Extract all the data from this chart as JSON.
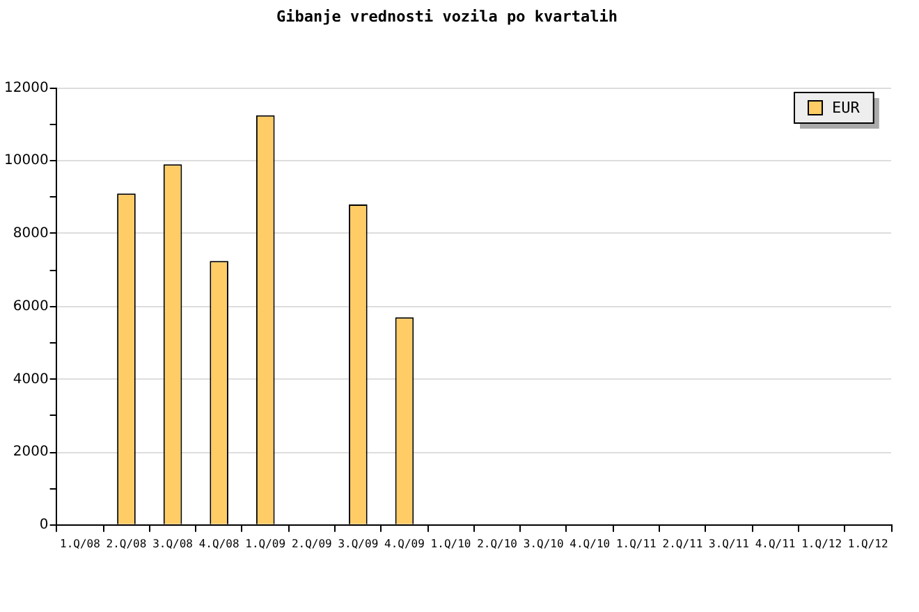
{
  "chart_data": {
    "type": "bar",
    "title": "Gibanje vrednosti vozila po kvartalih",
    "categories": [
      "1.Q/08",
      "2.Q/08",
      "3.Q/08",
      "4.Q/08",
      "1.Q/09",
      "2.Q/09",
      "3.Q/09",
      "4.Q/09",
      "1.Q/10",
      "2.Q/10",
      "3.Q/10",
      "4.Q/10",
      "1.Q/11",
      "2.Q/11",
      "3.Q/11",
      "4.Q/11",
      "1.Q/12",
      "1.Q/12"
    ],
    "series": [
      {
        "name": "EUR",
        "color": "#ffcc66",
        "values": [
          null,
          9100,
          9900,
          7250,
          11250,
          null,
          8800,
          5700,
          null,
          null,
          null,
          null,
          null,
          null,
          null,
          null,
          null,
          null
        ]
      }
    ],
    "ylim": [
      0,
      12000
    ],
    "yticks": [
      0,
      {
        "value": 1000,
        "label": null
      },
      2000,
      {
        "value": 3000,
        "label": null
      },
      4000,
      {
        "value": 5000,
        "label": null
      },
      6000,
      {
        "value": 7000,
        "label": null
      },
      8000,
      {
        "value": 9000,
        "label": null
      },
      10000,
      {
        "value": 11000,
        "label": null
      },
      12000
    ],
    "grid": "y",
    "legend": "top right"
  }
}
